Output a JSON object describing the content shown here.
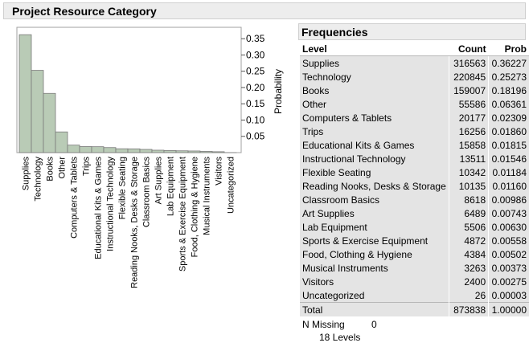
{
  "report": {
    "title": "Project Resource Category"
  },
  "frequencies": {
    "title": "Frequencies",
    "columns": {
      "level": "Level",
      "count": "Count",
      "prob": "Prob"
    },
    "rows": [
      {
        "level": "Supplies",
        "count": "316563",
        "prob": "0.36227"
      },
      {
        "level": "Technology",
        "count": "220845",
        "prob": "0.25273"
      },
      {
        "level": "Books",
        "count": "159007",
        "prob": "0.18196"
      },
      {
        "level": "Other",
        "count": "55586",
        "prob": "0.06361"
      },
      {
        "level": "Computers & Tablets",
        "count": "20177",
        "prob": "0.02309"
      },
      {
        "level": "Trips",
        "count": "16256",
        "prob": "0.01860"
      },
      {
        "level": "Educational Kits & Games",
        "count": "15858",
        "prob": "0.01815"
      },
      {
        "level": "Instructional Technology",
        "count": "13511",
        "prob": "0.01546"
      },
      {
        "level": "Flexible Seating",
        "count": "10342",
        "prob": "0.01184"
      },
      {
        "level": "Reading Nooks, Desks & Storage",
        "count": "10135",
        "prob": "0.01160"
      },
      {
        "level": "Classroom Basics",
        "count": "8618",
        "prob": "0.00986"
      },
      {
        "level": "Art Supplies",
        "count": "6489",
        "prob": "0.00743"
      },
      {
        "level": "Lab Equipment",
        "count": "5506",
        "prob": "0.00630"
      },
      {
        "level": "Sports & Exercise Equipment",
        "count": "4872",
        "prob": "0.00558"
      },
      {
        "level": "Food, Clothing & Hygiene",
        "count": "4384",
        "prob": "0.00502"
      },
      {
        "level": "Musical Instruments",
        "count": "3263",
        "prob": "0.00373"
      },
      {
        "level": "Visitors",
        "count": "2400",
        "prob": "0.00275"
      },
      {
        "level": "Uncategorized",
        "count": "26",
        "prob": "0.00003"
      }
    ],
    "total": {
      "label": "Total",
      "count": "873838",
      "prob": "1.00000"
    },
    "n_missing": {
      "label": "N Missing",
      "value": "0"
    },
    "levels": "18  Levels"
  },
  "chart_data": {
    "type": "bar",
    "title": "",
    "xlabel": "",
    "ylabel": "Probability",
    "ylim": [
      0,
      0.38
    ],
    "yticks": [
      0.05,
      0.1,
      0.15,
      0.2,
      0.25,
      0.3,
      0.35
    ],
    "ytick_labels": [
      "0.05",
      "0.10",
      "0.15",
      "0.20",
      "0.25",
      "0.30",
      "0.35"
    ],
    "grid": false,
    "bar_color": "#b9cbb6",
    "categories": [
      "Supplies",
      "Technology",
      "Books",
      "Other",
      "Computers & Tablets",
      "Trips",
      "Educational Kits & Games",
      "Instructional Technology",
      "Flexible Seating",
      "Reading Nooks, Desks & Storage",
      "Classroom Basics",
      "Art Supplies",
      "Lab Equipment",
      "Sports & Exercise Equipment",
      "Food, Clothing & Hygiene",
      "Musical Instruments",
      "Visitors",
      "Uncategorized"
    ],
    "values": [
      0.36227,
      0.25273,
      0.18196,
      0.06361,
      0.02309,
      0.0186,
      0.01815,
      0.01546,
      0.01184,
      0.0116,
      0.00986,
      0.00743,
      0.0063,
      0.00558,
      0.00502,
      0.00373,
      0.00275,
      3e-05
    ]
  }
}
